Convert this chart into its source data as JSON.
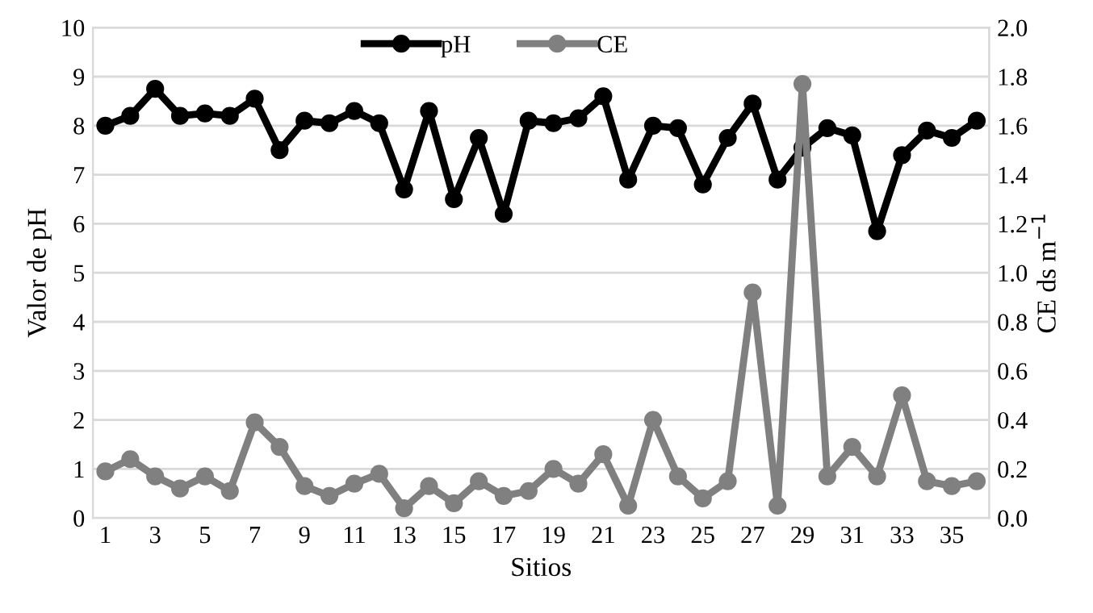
{
  "chart_data": {
    "type": "line",
    "xlabel": "Sitios",
    "ylabel": "Valor de pH",
    "y2label": "CE ds m$^{−1}$",
    "categories": [
      "1",
      null,
      "3",
      null,
      "5",
      null,
      "7",
      null,
      "9",
      null,
      "11",
      null,
      "13",
      null,
      "15",
      null,
      "17",
      null,
      "19",
      null,
      "21",
      null,
      "23",
      null,
      "25",
      null,
      "27",
      null,
      "29",
      null,
      "31",
      null,
      "33",
      null,
      "35",
      null
    ],
    "series": [
      {
        "name": "pH",
        "color": "#000000",
        "values": [
          8.0,
          8.2,
          8.75,
          8.2,
          8.25,
          8.2,
          8.55,
          7.5,
          8.1,
          8.05,
          8.3,
          8.05,
          6.7,
          8.3,
          6.5,
          7.75,
          6.2,
          8.1,
          8.05,
          8.15,
          8.6,
          6.9,
          8.0,
          7.95,
          6.8,
          7.75,
          8.45,
          6.9,
          7.55,
          7.95,
          7.8,
          5.85,
          7.4,
          7.9,
          7.75,
          8.1
        ]
      },
      {
        "name": "CE",
        "color": "#808080",
        "axis": "y2",
        "values": [
          0.19,
          0.24,
          0.17,
          0.12,
          0.17,
          0.11,
          0.39,
          0.29,
          0.13,
          0.09,
          0.14,
          0.18,
          0.04,
          0.13,
          0.06,
          0.15,
          0.09,
          0.11,
          0.2,
          0.14,
          0.26,
          0.05,
          0.4,
          0.17,
          0.08,
          0.15,
          0.92,
          0.05,
          1.77,
          0.17,
          0.29,
          0.17,
          0.5,
          0.15,
          0.13,
          0.15
        ]
      }
    ],
    "ylim": [
      0,
      10
    ],
    "yticks": [
      0,
      1,
      2,
      3,
      4,
      5,
      6,
      7,
      8,
      9,
      10
    ],
    "y2lim": [
      0,
      2
    ],
    "y2ticks": [
      {
        "value": 0,
        "label": "0.0"
      },
      {
        "value": 0.2,
        "label": "0.2"
      },
      {
        "value": 0.4,
        "label": "0.4"
      },
      {
        "value": 0.6,
        "label": "0.6"
      },
      {
        "value": 0.8,
        "label": "0.8"
      },
      {
        "value": 1.0,
        "label": "1.0"
      },
      {
        "value": 1.2,
        "label": "1.2"
      },
      {
        "value": 1.4,
        "label": "1.4"
      },
      {
        "value": 1.6,
        "label": "1.6"
      },
      {
        "value": 1.8,
        "label": "1.8"
      },
      {
        "value": 2.0,
        "label": "2.0"
      }
    ],
    "grid": "y",
    "legend": "top",
    "marker": "circle",
    "line_style": "solid"
  }
}
